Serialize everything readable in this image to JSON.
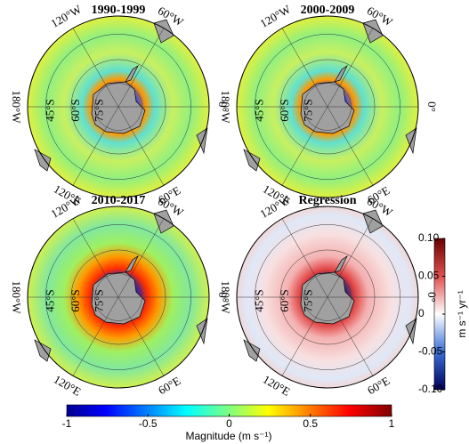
{
  "panels": [
    {
      "title": "1990-1999",
      "kind": "magnitude"
    },
    {
      "title": "2000-2009",
      "kind": "magnitude"
    },
    {
      "title": "2010-2017",
      "kind": "magnitude"
    },
    {
      "title": "Regression",
      "kind": "regression"
    }
  ],
  "graticule_labels": {
    "lon": [
      "60°W",
      "120°W",
      "180°W",
      "120°E",
      "60°E",
      "0°"
    ],
    "lat": [
      "45°S",
      "60°S",
      "75°S"
    ]
  },
  "colorbar": {
    "label": "Magnitude (m s⁻¹)",
    "lim": [
      -1,
      1
    ],
    "ticks": [
      -1,
      -0.5,
      0,
      0.5,
      1
    ]
  },
  "regression_colorbar": {
    "label": "m s⁻¹ yr⁻¹",
    "lim": [
      -0.1,
      0.1
    ],
    "ticks": [
      {
        "value": -0.1,
        "label": "-0.10"
      },
      -0.05,
      0,
      0.05,
      {
        "value": 0.1,
        "label": "0.10"
      }
    ]
  }
}
